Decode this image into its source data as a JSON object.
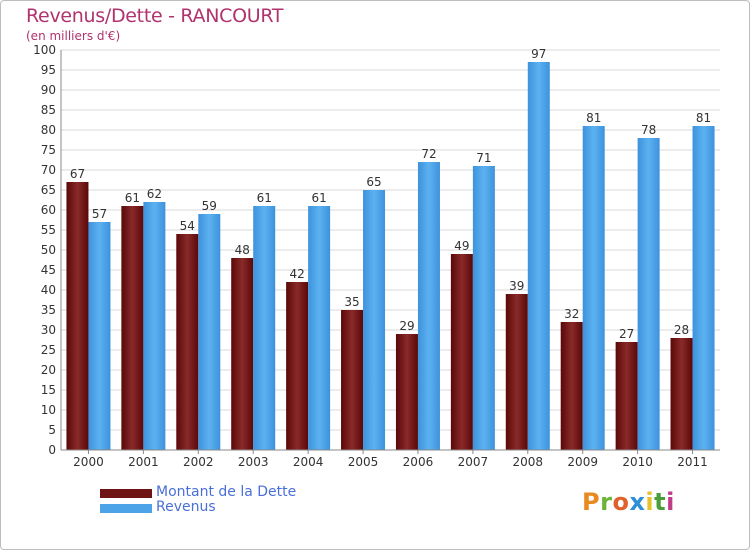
{
  "chart_data": {
    "type": "bar",
    "title": "Revenus/Dette - RANCOURT",
    "subtitle": "(en milliers d'€)",
    "categories": [
      "2000",
      "2001",
      "2002",
      "2003",
      "2004",
      "2005",
      "2006",
      "2007",
      "2008",
      "2009",
      "2010",
      "2011"
    ],
    "series": [
      {
        "name": "Montant de la Dette",
        "color": "#6e1414",
        "values": [
          67,
          61,
          54,
          48,
          42,
          35,
          29,
          49,
          39,
          32,
          27,
          28
        ]
      },
      {
        "name": "Revenus",
        "color": "#4da3e8",
        "values": [
          57,
          62,
          59,
          61,
          61,
          65,
          72,
          71,
          97,
          81,
          78,
          81
        ]
      }
    ],
    "ylim": [
      0,
      100
    ],
    "ytick_step": 5,
    "xlabel": "",
    "ylabel": "",
    "grid": true,
    "legend_position": "bottom-left"
  },
  "logo": {
    "letters": [
      "P",
      "r",
      "o",
      "x",
      "i",
      "t",
      "i"
    ],
    "colors": [
      "#e88a1f",
      "#6ab536",
      "#e0612a",
      "#2d8fd5",
      "#e8c22d",
      "#4a9e3a",
      "#c23b8a"
    ]
  }
}
